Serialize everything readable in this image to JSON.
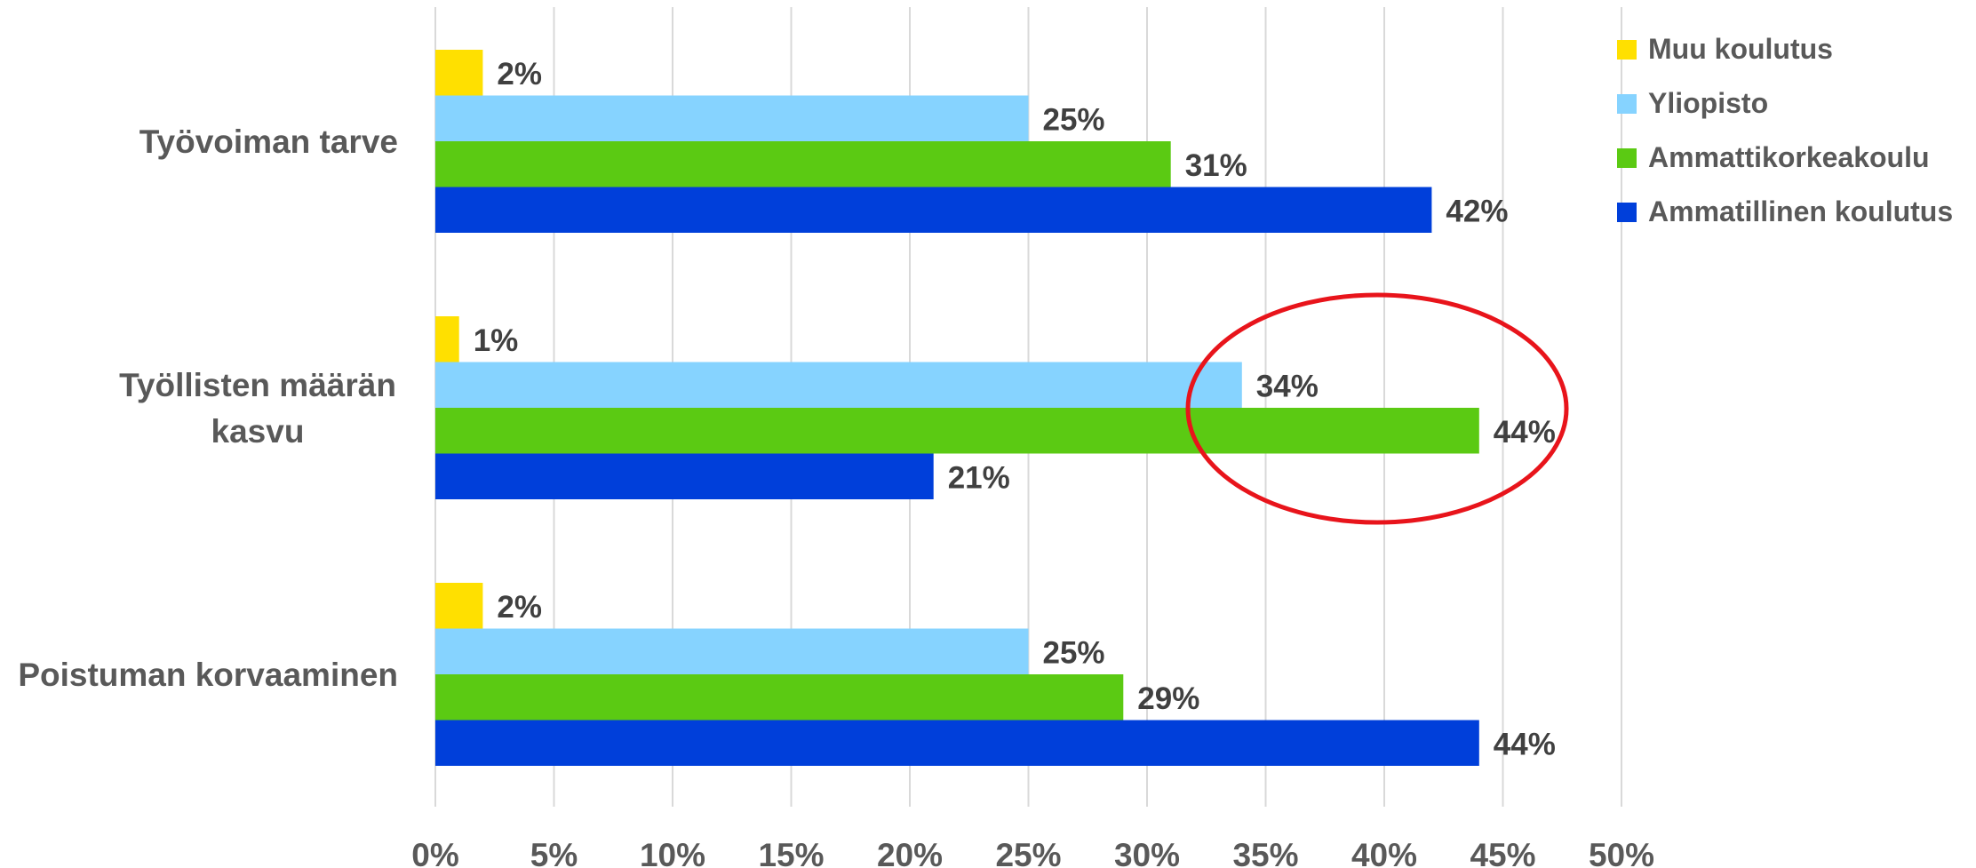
{
  "chart_data": {
    "type": "bar",
    "orientation": "horizontal",
    "categories": [
      [
        "Työvoiman tarve"
      ],
      [
        "Työllisten määrän",
        "kasvu"
      ],
      [
        "Poistuman korvaaminen"
      ]
    ],
    "series": [
      {
        "name": "Muu koulutus",
        "color": "#FFE000",
        "values": [
          2,
          1,
          2
        ],
        "labels": [
          "2%",
          "1%",
          "2%"
        ]
      },
      {
        "name": "Yliopisto",
        "color": "#86D3FF",
        "values": [
          25,
          34,
          25
        ],
        "labels": [
          "25%",
          "34%",
          "25%"
        ]
      },
      {
        "name": "Ammattikorkeakoulu",
        "color": "#5BCA13",
        "values": [
          31,
          44,
          29
        ],
        "labels": [
          "31%",
          "44%",
          "29%"
        ]
      },
      {
        "name": "Ammatillinen koulutus",
        "color": "#003FDA",
        "values": [
          42,
          21,
          44
        ],
        "labels": [
          "42%",
          "21%",
          "44%"
        ]
      }
    ],
    "xlim": [
      0,
      50
    ],
    "xticks": [
      "0%",
      "5%",
      "10%",
      "15%",
      "20%",
      "25%",
      "30%",
      "35%",
      "40%",
      "45%",
      "50%"
    ],
    "grid": true,
    "legend_position": "top-right",
    "annotation": {
      "shape": "ellipse",
      "color": "#E8141B",
      "category_index": 1,
      "highlights": [
        "Yliopisto",
        "Ammattikorkeakoulu"
      ]
    }
  }
}
